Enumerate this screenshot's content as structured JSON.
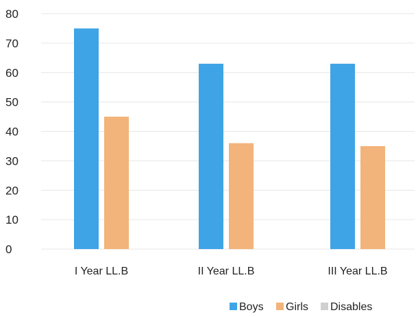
{
  "chart_data": {
    "type": "bar",
    "categories": [
      "I Year LL.B",
      "II Year LL.B",
      "III Year LL.B"
    ],
    "series": [
      {
        "name": "Boys",
        "values": [
          75,
          63,
          63
        ],
        "color": "#3fa4e6"
      },
      {
        "name": "Girls",
        "values": [
          45,
          36,
          35
        ],
        "color": "#f2b47a"
      },
      {
        "name": "Disables",
        "values": [
          0,
          0,
          0
        ],
        "color": "#cfcfcf"
      }
    ],
    "y_ticks": [
      "0",
      "10",
      "20",
      "30",
      "40",
      "50",
      "60",
      "70",
      "80"
    ],
    "ylim": [
      0,
      80
    ],
    "grid": true,
    "legend_position": "bottom-right",
    "title": "",
    "xlabel": "",
    "ylabel": ""
  }
}
